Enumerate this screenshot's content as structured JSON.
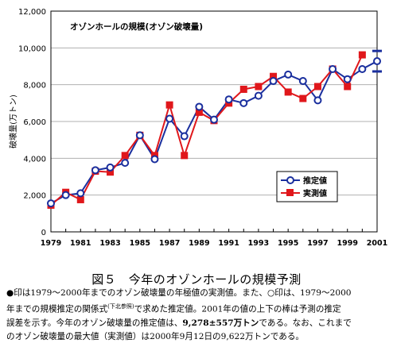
{
  "chart_data": {
    "type": "line",
    "title": "オゾンホールの規模(オゾン破壊量)",
    "ylabel": "破壊量(万トン)",
    "ylim": [
      0,
      12000
    ],
    "y_ticks": [
      "0",
      "2,000",
      "4,000",
      "6,000",
      "8,000",
      "10,000",
      "12,000"
    ],
    "xlim": [
      1979,
      2001
    ],
    "x_ticks": [
      "1979",
      "1981",
      "1983",
      "1985",
      "1987",
      "1989",
      "1991",
      "1993",
      "1995",
      "1997",
      "1999",
      "2001"
    ],
    "legend_position": "bottom-right",
    "x": [
      1979,
      1980,
      1981,
      1982,
      1983,
      1984,
      1985,
      1986,
      1987,
      1988,
      1989,
      1990,
      1991,
      1992,
      1993,
      1994,
      1995,
      1996,
      1997,
      1998,
      1999,
      2000,
      2001
    ],
    "series": [
      {
        "name": "推定値",
        "marker": "open-circle",
        "color": "#1a2f9e",
        "values": [
          1550,
          2000,
          2100,
          3350,
          3500,
          3750,
          5250,
          3950,
          6150,
          5200,
          6800,
          6100,
          7200,
          7000,
          7400,
          8200,
          8550,
          8200,
          7150,
          8850,
          8300,
          8850,
          9278
        ]
      },
      {
        "name": "実測値",
        "marker": "filled-square",
        "color": "#e0171b",
        "values": [
          1450,
          2150,
          1750,
          3300,
          3250,
          4150,
          5250,
          4150,
          6900,
          4150,
          6500,
          6050,
          7000,
          7750,
          7900,
          8450,
          7600,
          7250,
          7900,
          8850,
          7900,
          9622,
          null
        ]
      }
    ],
    "prediction_2001": {
      "value": 9278,
      "error_bar": 557
    }
  },
  "colors": {
    "estimated": "#1a2f9e",
    "measured": "#e0171b",
    "grid": "#b0b0b0"
  },
  "caption": {
    "figure_title": "図５　今年のオゾンホールの規模予測",
    "p1": "●印は1979～2000年までのオゾン破壊量の年極値の実測値。また、○印は、1979～2000",
    "p2_a": "年までの規模推定の関係式",
    "p2_formula": "(下北参照)",
    "p2_b": "で求めた推定値。2001年の値の上下の棒は予測の推定",
    "p3_a": "誤差を示す。今年のオゾン破壊量の推定値は、",
    "p3_bold": "9,278±557万トン",
    "p3_b": "である。なお、これまで",
    "p4": "のオゾン破壊量の最大値（実測値）は2000年9月12日の9,622万トンである。"
  }
}
